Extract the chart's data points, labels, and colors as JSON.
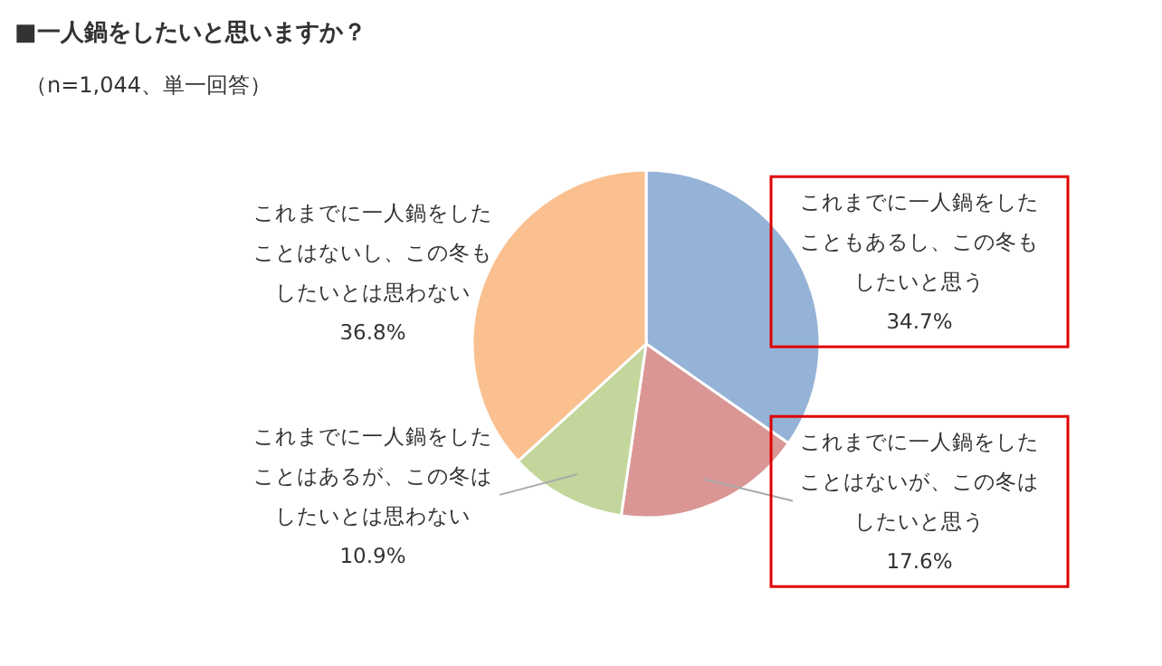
{
  "chart_data": {
    "type": "pie",
    "title": "■一人鍋をしたいと思いますか？",
    "subtitle": "（n=1,044、単一回答）",
    "categories": [
      "これまでに一人鍋をしたこともあるし、この冬もしたいと思う",
      "これまでに一人鍋をしたことはないが、この冬はしたいと思う",
      "これまでに一人鍋をしたことはあるが、この冬はしたいとは思わない",
      "これまでに一人鍋をしたことはないし、この冬もしたいとは思わない"
    ],
    "values": [
      34.7,
      17.6,
      10.9,
      36.8
    ],
    "value_labels": [
      "34.7%",
      "17.6%",
      "10.9%",
      "36.8%"
    ],
    "colors": [
      "#95b3d7",
      "#d99694",
      "#c3d69b",
      "#fac090"
    ]
  }
}
